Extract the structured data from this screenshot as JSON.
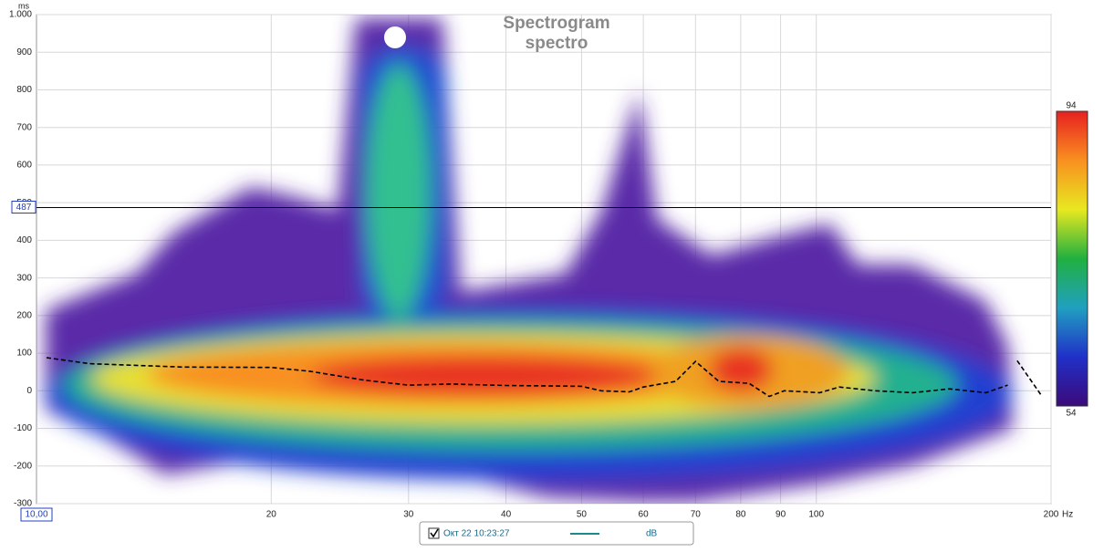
{
  "chart_data": {
    "type": "spectrogram",
    "title": "Spectrogram",
    "subtitle": "spectro",
    "y_unit": "ms",
    "x_unit": "Hz",
    "log_x": true,
    "grid": true,
    "xlim": [
      10,
      200
    ],
    "ylim": [
      -300,
      1000
    ],
    "xticks": [
      20,
      30,
      40,
      50,
      60,
      70,
      80,
      90,
      100,
      200
    ],
    "yticks": [
      -300,
      -200,
      -100,
      0,
      100,
      200,
      300,
      400,
      500,
      600,
      700,
      800,
      900,
      {
        "value": 1000,
        "label": "1.000"
      }
    ],
    "x_cursor": {
      "value": 10,
      "label": "10,00"
    },
    "y_cursor": 487,
    "colorbar": {
      "min": 54,
      "max": 94,
      "colors": [
        "#3b0a7a",
        "#2030c8",
        "#20a0c0",
        "#20b040",
        "#e8e820",
        "#f89020",
        "#e82020"
      ]
    },
    "series": [
      {
        "name": "Окт 22 10:23:27",
        "unit": "dB",
        "color": "#000000",
        "legend_color": "#1a8a8a",
        "x": [
          10.3,
          11.7,
          15.4,
          20,
          22.4,
          26.4,
          30,
          34,
          40,
          50,
          53,
          57.6,
          60,
          66,
          70,
          75,
          82,
          87,
          91,
          101,
          107,
          119,
          133,
          148,
          165,
          176,
          null,
          181,
          194
        ],
        "values": [
          88,
          72,
          63,
          62,
          52,
          28,
          15,
          18,
          14,
          12,
          0,
          -3,
          10,
          25,
          78,
          25,
          20,
          -15,
          0,
          -5,
          10,
          0,
          -5,
          5,
          -5,
          15,
          null,
          80,
          -10
        ]
      }
    ]
  }
}
